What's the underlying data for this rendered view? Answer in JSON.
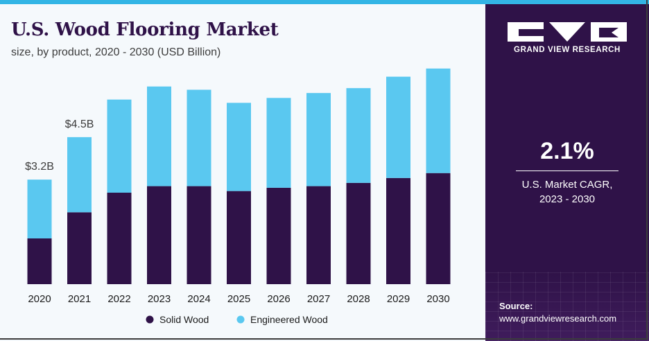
{
  "header": {
    "title": "U.S. Wood Flooring Market",
    "subtitle": "size, by product, 2020 - 2030 (USD Billion)"
  },
  "chart_data": {
    "type": "bar",
    "stacked": true,
    "categories": [
      "2020",
      "2021",
      "2022",
      "2023",
      "2024",
      "2025",
      "2026",
      "2027",
      "2028",
      "2029",
      "2030"
    ],
    "series": [
      {
        "name": "Solid Wood",
        "color": "#2f1248",
        "values": [
          1.4,
          2.2,
          2.8,
          3.0,
          3.0,
          2.85,
          2.95,
          3.0,
          3.1,
          3.25,
          3.4
        ]
      },
      {
        "name": "Engineered Wood",
        "color": "#5ac8f0",
        "values": [
          1.8,
          2.3,
          2.85,
          3.05,
          2.95,
          2.7,
          2.75,
          2.85,
          2.9,
          3.1,
          3.2
        ]
      }
    ],
    "data_labels": [
      {
        "category": "2020",
        "text": "$3.2B"
      },
      {
        "category": "2021",
        "text": "$4.5B"
      }
    ],
    "ylim": [
      0,
      7
    ],
    "grid": false,
    "legend": "bottom-center"
  },
  "side_panel": {
    "brand": "GRAND VIEW RESEARCH",
    "cagr_value": "2.1%",
    "cagr_line1": "U.S. Market CAGR,",
    "cagr_line2": "2023 - 2030",
    "source_label": "Source:",
    "source_url": "www.grandviewresearch.com"
  }
}
